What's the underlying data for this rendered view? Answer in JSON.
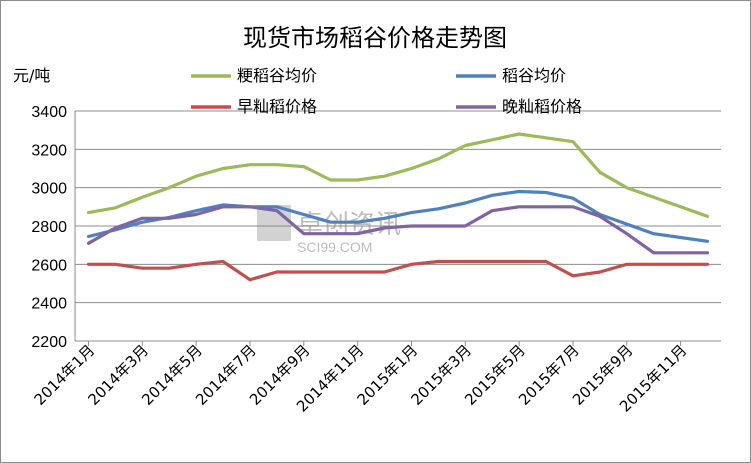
{
  "chart_data": {
    "type": "line",
    "title": "现货市场稻谷价格走势图",
    "ylabel": "元/吨",
    "xlabel": "",
    "ylim": [
      2200,
      3400
    ],
    "yticks": [
      2200,
      2400,
      2600,
      2800,
      3000,
      3200,
      3400
    ],
    "x": [
      "2014年1月",
      "2014年2月",
      "2014年3月",
      "2014年4月",
      "2014年5月",
      "2014年6月",
      "2014年7月",
      "2014年8月",
      "2014年9月",
      "2014年10月",
      "2014年11月",
      "2014年12月",
      "2015年1月",
      "2015年2月",
      "2015年3月",
      "2015年4月",
      "2015年5月",
      "2015年6月",
      "2015年7月",
      "2015年8月",
      "2015年9月",
      "2015年10月",
      "2015年11月",
      "2015年12月"
    ],
    "xtick_labels": [
      "2014年1月",
      "2014年3月",
      "2014年5月",
      "2014年7月",
      "2014年9月",
      "2014年11月",
      "2015年1月",
      "2015年3月",
      "2015年5月",
      "2015年7月",
      "2015年9月",
      "2015年11月"
    ],
    "grid": true,
    "legend_position": "top",
    "series": [
      {
        "name": "粳稻谷均价",
        "color": "#9bbb59",
        "values": [
          2870,
          2895,
          2950,
          3000,
          3060,
          3100,
          3120,
          3120,
          3110,
          3040,
          3040,
          3060,
          3100,
          3150,
          3220,
          3250,
          3280,
          3260,
          3240,
          3080,
          3000,
          2950,
          2900,
          2850
        ]
      },
      {
        "name": "稻谷均价",
        "color": "#4f81bd",
        "values": [
          2745,
          2780,
          2820,
          2845,
          2880,
          2910,
          2900,
          2900,
          2860,
          2820,
          2820,
          2840,
          2870,
          2890,
          2920,
          2960,
          2980,
          2975,
          2945,
          2860,
          2810,
          2760,
          2740,
          2720
        ]
      },
      {
        "name": "早籼稻价格",
        "color": "#c0504d",
        "values": [
          2600,
          2600,
          2580,
          2580,
          2600,
          2615,
          2520,
          2560,
          2560,
          2560,
          2560,
          2560,
          2600,
          2615,
          2615,
          2615,
          2615,
          2615,
          2540,
          2560,
          2600,
          2600,
          2600,
          2600
        ]
      },
      {
        "name": "晚籼稻价格",
        "color": "#8064a2",
        "values": [
          2710,
          2790,
          2840,
          2840,
          2860,
          2900,
          2900,
          2880,
          2760,
          2760,
          2760,
          2790,
          2800,
          2800,
          2800,
          2880,
          2900,
          2900,
          2900,
          2850,
          2760,
          2660,
          2660,
          2660
        ]
      }
    ]
  },
  "watermark": {
    "main": "卓创资讯",
    "sub": "SCI99.COM"
  }
}
